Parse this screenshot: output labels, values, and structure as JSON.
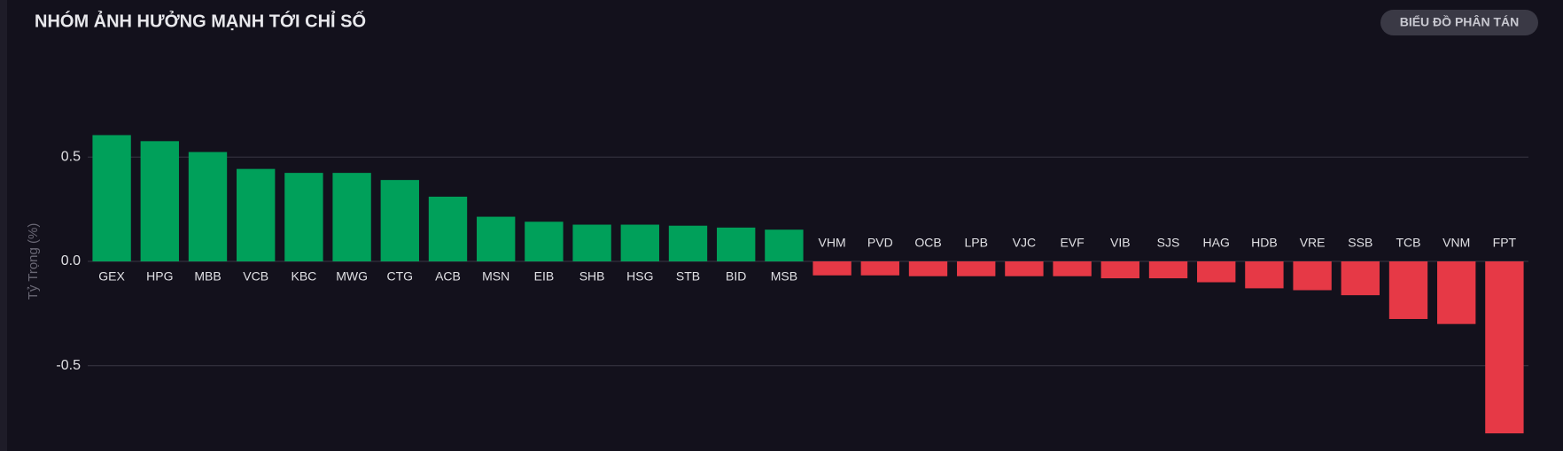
{
  "header": {
    "title": "NHÓM ẢNH HƯỞNG MẠNH TỚI CHỈ SỐ",
    "button": "BIỂU ĐỒ PHÂN TÁN"
  },
  "chart_data": {
    "type": "bar",
    "y_label": "Tỷ Trọng (%)",
    "categories": [
      "GEX",
      "HPG",
      "MBB",
      "VCB",
      "KBC",
      "MWG",
      "CTG",
      "ACB",
      "MSN",
      "EIB",
      "SHB",
      "HSG",
      "STB",
      "BID",
      "MSB",
      "VHM",
      "PVD",
      "OCB",
      "LPB",
      "VJC",
      "EVF",
      "VIB",
      "SJS",
      "HAG",
      "HDB",
      "VRE",
      "SSB",
      "TCB",
      "VNM",
      "FPT"
    ],
    "values": [
      0.605,
      0.576,
      0.524,
      0.443,
      0.424,
      0.424,
      0.39,
      0.31,
      0.214,
      0.19,
      0.176,
      0.176,
      0.171,
      0.162,
      0.152,
      -0.067,
      -0.067,
      -0.071,
      -0.071,
      -0.071,
      -0.071,
      -0.081,
      -0.081,
      -0.1,
      -0.129,
      -0.138,
      -0.162,
      -0.276,
      -0.3,
      -0.824
    ],
    "positive_color": "#00a05a",
    "negative_color": "#e63946",
    "ylim": [
      -0.9,
      0.9
    ],
    "yticks": [
      -0.5,
      {
        "value": 0,
        "label": "0.0"
      },
      0.5
    ],
    "grid": true
  }
}
